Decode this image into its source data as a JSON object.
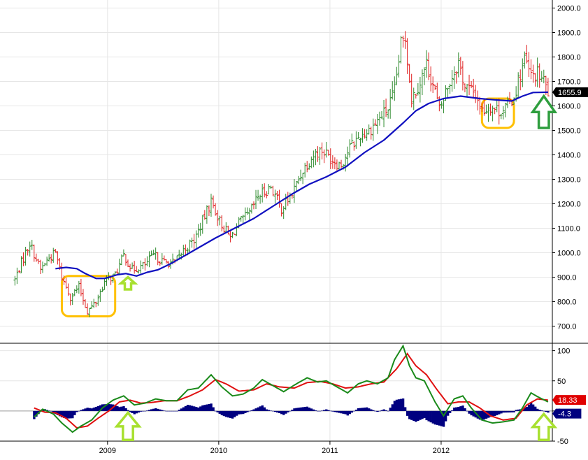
{
  "chart_data": [
    {
      "type": "ohlc",
      "panel": "price",
      "frequency": "weekly",
      "ylim": [
        650,
        2010
      ],
      "yticks": [
        700,
        800,
        900,
        1000,
        1100,
        1200,
        1300,
        1400,
        1500,
        1600,
        1700,
        1800,
        1900,
        2000
      ],
      "ytick_labels": [
        "700.0",
        "800.0",
        "900.0",
        "1000.0",
        "1100.0",
        "1200.0",
        "1300.0",
        "1400.0",
        "1500.0",
        "1600.0",
        "1700.0",
        "1800.0",
        "1900.0",
        "2000.0"
      ],
      "ytick_side": "right",
      "grid": true,
      "last_value_label": "1655.9",
      "last_value": 1655.9,
      "colors": {
        "up": "#2e8b2e",
        "down": "#e02020",
        "moving_average": "#1010c0",
        "label_bg": "#000000"
      },
      "price_anchors": [
        [
          "2008-03-03",
          890
        ],
        [
          "2008-03-24",
          960
        ],
        [
          "2008-04-21",
          1040
        ],
        [
          "2008-05-26",
          930
        ],
        [
          "2008-06-16",
          970
        ],
        [
          "2008-07-14",
          1000
        ],
        [
          "2008-08-04",
          900
        ],
        [
          "2008-09-01",
          820
        ],
        [
          "2008-09-29",
          860
        ],
        [
          "2008-10-27",
          760
        ],
        [
          "2008-11-24",
          800
        ],
        [
          "2008-12-22",
          880
        ],
        [
          "2009-01-26",
          910
        ],
        [
          "2009-02-23",
          990
        ],
        [
          "2009-03-23",
          930
        ],
        [
          "2009-05-04",
          950
        ],
        [
          "2009-06-01",
          990
        ],
        [
          "2009-07-06",
          960
        ],
        [
          "2009-08-10",
          960
        ],
        [
          "2009-09-07",
          1010
        ],
        [
          "2009-10-12",
          1050
        ],
        [
          "2009-11-02",
          1110
        ],
        [
          "2009-12-07",
          1210
        ],
        [
          "2010-01-04",
          1130
        ],
        [
          "2010-02-08",
          1060
        ],
        [
          "2010-03-08",
          1120
        ],
        [
          "2010-04-12",
          1160
        ],
        [
          "2010-05-10",
          1230
        ],
        [
          "2010-06-21",
          1270
        ],
        [
          "2010-07-26",
          1180
        ],
        [
          "2010-08-30",
          1240
        ],
        [
          "2010-10-04",
          1340
        ],
        [
          "2010-11-08",
          1400
        ],
        [
          "2010-12-06",
          1420
        ],
        [
          "2011-01-10",
          1380
        ],
        [
          "2011-02-07",
          1360
        ],
        [
          "2011-03-07",
          1430
        ],
        [
          "2011-04-11",
          1480
        ],
        [
          "2011-05-09",
          1500
        ],
        [
          "2011-06-06",
          1540
        ],
        [
          "2011-07-11",
          1590
        ],
        [
          "2011-08-01",
          1660
        ],
        [
          "2011-08-22",
          1850
        ],
        [
          "2011-09-05",
          1880
        ],
        [
          "2011-09-26",
          1630
        ],
        [
          "2011-10-24",
          1700
        ],
        [
          "2011-11-14",
          1770
        ],
        [
          "2011-12-12",
          1660
        ],
        [
          "2011-12-26",
          1580
        ],
        [
          "2012-01-16",
          1660
        ],
        [
          "2012-02-27",
          1780
        ],
        [
          "2012-03-19",
          1680
        ],
        [
          "2012-04-23",
          1650
        ],
        [
          "2012-05-14",
          1580
        ],
        [
          "2012-06-11",
          1600
        ],
        [
          "2012-07-09",
          1580
        ],
        [
          "2012-08-06",
          1600
        ],
        [
          "2012-08-27",
          1640
        ],
        [
          "2012-09-10",
          1700
        ],
        [
          "2012-10-01",
          1790
        ],
        [
          "2012-10-22",
          1720
        ],
        [
          "2012-11-12",
          1730
        ],
        [
          "2012-12-03",
          1700
        ],
        [
          "2012-12-17",
          1656
        ]
      ],
      "moving_average": [
        [
          "2008-07-14",
          935
        ],
        [
          "2008-08-18",
          940
        ],
        [
          "2008-09-22",
          935
        ],
        [
          "2008-10-20",
          915
        ],
        [
          "2008-11-24",
          895
        ],
        [
          "2008-12-22",
          895
        ],
        [
          "2009-02-02",
          910
        ],
        [
          "2009-03-02",
          915
        ],
        [
          "2009-04-06",
          905
        ],
        [
          "2009-05-11",
          920
        ],
        [
          "2009-06-15",
          930
        ],
        [
          "2009-07-27",
          955
        ],
        [
          "2009-09-07",
          985
        ],
        [
          "2009-10-26",
          1020
        ],
        [
          "2009-12-21",
          1060
        ],
        [
          "2010-02-22",
          1100
        ],
        [
          "2010-04-26",
          1140
        ],
        [
          "2010-06-28",
          1190
        ],
        [
          "2010-08-30",
          1240
        ],
        [
          "2010-10-25",
          1280
        ],
        [
          "2010-12-20",
          1310
        ],
        [
          "2011-02-21",
          1350
        ],
        [
          "2011-04-25",
          1410
        ],
        [
          "2011-06-27",
          1460
        ],
        [
          "2011-08-29",
          1530
        ],
        [
          "2011-10-10",
          1580
        ],
        [
          "2011-11-21",
          1610
        ],
        [
          "2012-01-09",
          1630
        ],
        [
          "2012-03-05",
          1640
        ],
        [
          "2012-05-07",
          1630
        ],
        [
          "2012-06-25",
          1625
        ],
        [
          "2012-08-20",
          1620
        ],
        [
          "2012-09-24",
          1640
        ],
        [
          "2012-10-29",
          1655
        ],
        [
          "2012-12-17",
          1656
        ]
      ]
    },
    {
      "type": "macd",
      "panel": "indicator",
      "ylim": [
        -50,
        110
      ],
      "yticks": [
        100,
        50,
        0,
        -50
      ],
      "ytick_labels": [
        "100",
        "50",
        "0",
        "-50"
      ],
      "ytick_side": "right",
      "grid": true,
      "colors": {
        "line1": "#1a8a1a",
        "line2": "#e01010",
        "histogram": "#000080",
        "label_red_bg": "#e00000",
        "label_blue_bg": "#000080"
      },
      "last_values": [
        {
          "series": "line2",
          "label": "18.33",
          "value": 18.33
        },
        {
          "series": "histogram",
          "label": "-4.3",
          "value": -4.3
        }
      ],
      "line1_anchors": [
        [
          "2008-05-05",
          -10
        ],
        [
          "2008-06-02",
          3
        ],
        [
          "2008-07-07",
          -5
        ],
        [
          "2008-08-04",
          -20
        ],
        [
          "2008-09-08",
          -35
        ],
        [
          "2008-10-06",
          -25
        ],
        [
          "2008-11-10",
          -15
        ],
        [
          "2008-12-15",
          5
        ],
        [
          "2009-01-19",
          18
        ],
        [
          "2009-02-23",
          25
        ],
        [
          "2009-03-30",
          10
        ],
        [
          "2009-05-04",
          13
        ],
        [
          "2009-06-08",
          20
        ],
        [
          "2009-07-13",
          17
        ],
        [
          "2009-08-17",
          17
        ],
        [
          "2009-09-21",
          35
        ],
        [
          "2009-10-26",
          38
        ],
        [
          "2009-12-07",
          60
        ],
        [
          "2010-01-11",
          40
        ],
        [
          "2010-02-15",
          25
        ],
        [
          "2010-03-22",
          28
        ],
        [
          "2010-04-26",
          38
        ],
        [
          "2010-05-24",
          52
        ],
        [
          "2010-06-28",
          42
        ],
        [
          "2010-08-02",
          32
        ],
        [
          "2010-09-13",
          45
        ],
        [
          "2010-10-18",
          55
        ],
        [
          "2010-11-22",
          48
        ],
        [
          "2010-12-20",
          50
        ],
        [
          "2011-01-24",
          40
        ],
        [
          "2011-02-28",
          30
        ],
        [
          "2011-04-04",
          45
        ],
        [
          "2011-05-02",
          50
        ],
        [
          "2011-06-06",
          45
        ],
        [
          "2011-07-11",
          55
        ],
        [
          "2011-08-01",
          85
        ],
        [
          "2011-08-29",
          108
        ],
        [
          "2011-09-19",
          75
        ],
        [
          "2011-10-10",
          55
        ],
        [
          "2011-11-07",
          50
        ],
        [
          "2011-12-12",
          15
        ],
        [
          "2012-01-09",
          -8
        ],
        [
          "2012-02-13",
          20
        ],
        [
          "2012-03-12",
          25
        ],
        [
          "2012-04-09",
          5
        ],
        [
          "2012-05-14",
          -15
        ],
        [
          "2012-06-18",
          -20
        ],
        [
          "2012-07-23",
          -18
        ],
        [
          "2012-08-27",
          -15
        ],
        [
          "2012-09-24",
          5
        ],
        [
          "2012-10-22",
          30
        ],
        [
          "2012-11-19",
          22
        ],
        [
          "2012-12-17",
          15
        ]
      ],
      "line2_anchors": [
        [
          "2008-05-05",
          5
        ],
        [
          "2008-06-09",
          -2
        ],
        [
          "2008-07-14",
          -3
        ],
        [
          "2008-08-18",
          -12
        ],
        [
          "2008-09-22",
          -28
        ],
        [
          "2008-10-27",
          -25
        ],
        [
          "2008-12-01",
          -12
        ],
        [
          "2009-01-05",
          0
        ],
        [
          "2009-02-09",
          15
        ],
        [
          "2009-03-16",
          18
        ],
        [
          "2009-04-20",
          13
        ],
        [
          "2009-05-25",
          14
        ],
        [
          "2009-07-06",
          17
        ],
        [
          "2009-08-17",
          17
        ],
        [
          "2009-09-28",
          25
        ],
        [
          "2009-11-09",
          35
        ],
        [
          "2009-12-21",
          52
        ],
        [
          "2010-01-25",
          45
        ],
        [
          "2010-03-08",
          33
        ],
        [
          "2010-04-26",
          35
        ],
        [
          "2010-06-07",
          45
        ],
        [
          "2010-07-19",
          40
        ],
        [
          "2010-09-06",
          38
        ],
        [
          "2010-10-18",
          47
        ],
        [
          "2010-11-29",
          49
        ],
        [
          "2011-01-10",
          45
        ],
        [
          "2011-02-21",
          38
        ],
        [
          "2011-04-04",
          40
        ],
        [
          "2011-05-16",
          45
        ],
        [
          "2011-06-27",
          48
        ],
        [
          "2011-08-08",
          70
        ],
        [
          "2011-09-12",
          95
        ],
        [
          "2011-10-10",
          75
        ],
        [
          "2011-11-14",
          60
        ],
        [
          "2011-12-19",
          35
        ],
        [
          "2012-01-23",
          12
        ],
        [
          "2012-02-27",
          15
        ],
        [
          "2012-04-02",
          15
        ],
        [
          "2012-05-07",
          5
        ],
        [
          "2012-06-11",
          -8
        ],
        [
          "2012-07-23",
          -15
        ],
        [
          "2012-09-03",
          -12
        ],
        [
          "2012-10-08",
          10
        ],
        [
          "2012-11-12",
          20
        ],
        [
          "2012-12-17",
          18
        ]
      ]
    }
  ],
  "x_axis": {
    "tick_dates": [
      "2009-01-01",
      "2010-01-01",
      "2011-01-01",
      "2012-01-01"
    ],
    "tick_labels": [
      "2009",
      "2010",
      "2011",
      "2012"
    ],
    "range": [
      "2008-01-14",
      "2012-12-31"
    ]
  },
  "annotations": [
    {
      "kind": "rounded-box",
      "color": "#ffc000",
      "x": [
        "2008-08-04",
        "2009-01-26"
      ],
      "y": [
        740,
        905
      ]
    },
    {
      "kind": "rounded-box",
      "color": "#ffc000",
      "x": [
        "2012-05-14",
        "2012-08-27"
      ],
      "y": [
        1510,
        1630
      ]
    },
    {
      "kind": "up-arrow",
      "color": "#a8e030",
      "panel": "price",
      "x": "2009-03-09",
      "y": [
        850,
        900
      ]
    },
    {
      "kind": "up-arrow",
      "color": "#2e9e3e",
      "panel": "price",
      "x": "2012-12-03",
      "y": [
        1510,
        1640
      ]
    },
    {
      "kind": "up-arrow",
      "color": "#a8e030",
      "panel": "indicator",
      "x": "2009-03-09",
      "y": [
        -48,
        -3
      ]
    },
    {
      "kind": "up-arrow",
      "color": "#a8e030",
      "panel": "indicator",
      "x": "2012-12-03",
      "y": [
        -48,
        -5
      ]
    }
  ]
}
